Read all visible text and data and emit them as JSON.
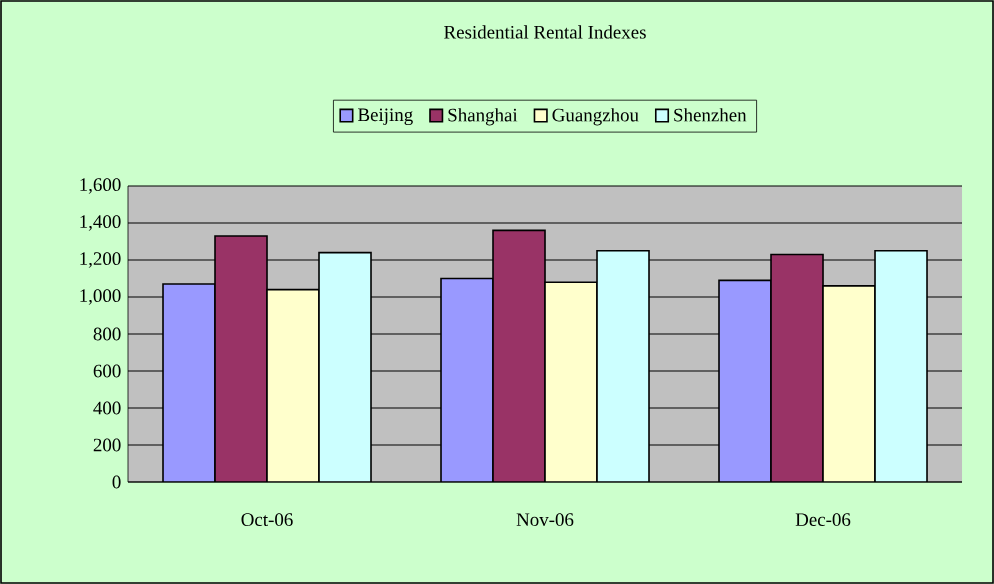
{
  "chart_data": {
    "type": "bar",
    "title": "Residential Rental Indexes",
    "categories": [
      "Oct-06",
      "Nov-06",
      "Dec-06"
    ],
    "series": [
      {
        "name": "Beijing",
        "color": "#9999ff",
        "values": [
          1070,
          1100,
          1090
        ]
      },
      {
        "name": "Shanghai",
        "color": "#993366",
        "values": [
          1330,
          1360,
          1230
        ]
      },
      {
        "name": "Guangzhou",
        "color": "#ffffcc",
        "values": [
          1040,
          1080,
          1060
        ]
      },
      {
        "name": "Shenzhen",
        "color": "#ccffff",
        "values": [
          1240,
          1250,
          1250
        ]
      }
    ],
    "ylim": [
      0,
      1600
    ],
    "yticks": [
      0,
      200,
      400,
      600,
      800,
      {
        "value": 1000,
        "label": "1,000"
      },
      {
        "value": 1200,
        "label": "1,200"
      },
      {
        "value": 1400,
        "label": "1,400"
      },
      {
        "value": 1600,
        "label": "1,600"
      }
    ],
    "grid": "y",
    "legend": "top"
  }
}
